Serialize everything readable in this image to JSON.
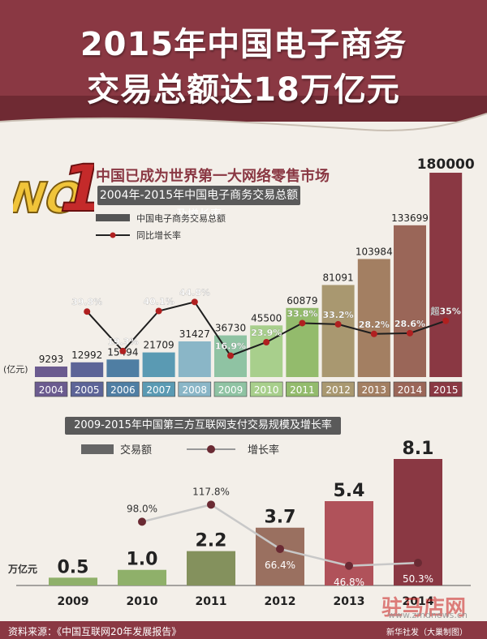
{
  "header": {
    "title_line1": "2015年中国电子商务",
    "title_line2": "交易总额达18万亿元"
  },
  "badge": {
    "text": "NO1"
  },
  "headline": "中国已成为世界第一大网络零售市场",
  "chart_data": [
    {
      "type": "bar",
      "title": "2004年-2015年中国电子商务交易总额及增长率",
      "ylabel": "(亿元)",
      "legend": [
        "中国电子商务交易总额",
        "同比增长率"
      ],
      "categories": [
        "2004",
        "2005",
        "2006",
        "2007",
        "2008",
        "2009",
        "2010",
        "2011",
        "2012",
        "2013",
        "2014",
        "2015"
      ],
      "values": [
        9293,
        12992,
        15494,
        21709,
        31427,
        36730,
        45500,
        60879,
        81091,
        103984,
        133699,
        180000
      ],
      "value_labels": [
        "9293",
        "12992",
        "15494",
        "21709",
        "31427",
        "36730",
        "45500",
        "60879",
        "81091",
        "103984",
        "133699",
        "180000"
      ],
      "growth": [
        null,
        39.8,
        19.3,
        40.1,
        44.8,
        16.9,
        23.9,
        33.8,
        33.2,
        28.2,
        28.6,
        35
      ],
      "growth_labels": [
        "",
        "39.8%",
        "19.3%",
        "40.1%",
        "44.8%",
        "16.9%",
        "23.9%",
        "33.8%",
        "33.2%",
        "28.2%",
        "28.6%",
        "超35%"
      ],
      "bar_colors": [
        "#6b5b8f",
        "#5d6497",
        "#4f7ea3",
        "#5a9ab3",
        "#8ab6c7",
        "#8fc3a3",
        "#a8cf8c",
        "#93bb6c",
        "#a99870",
        "#a37f62",
        "#9a6658",
        "#8a3843"
      ]
    },
    {
      "type": "bar",
      "title": "2009-2015年中国第三方互联网支付交易规模及增长率",
      "ylabel": "万亿元",
      "legend": [
        "交易额",
        "增长率"
      ],
      "categories": [
        "2009",
        "2010",
        "2011",
        "2012",
        "2013",
        "2014"
      ],
      "values": [
        0.5,
        1.0,
        2.2,
        3.7,
        5.4,
        8.1
      ],
      "value_labels": [
        "0.5",
        "1.0",
        "2.2",
        "3.7",
        "5.4",
        "8.1"
      ],
      "growth": [
        null,
        98.0,
        117.8,
        66.4,
        46.8,
        50.3
      ],
      "growth_labels": [
        "",
        "98.0%",
        "117.8%",
        "66.4%",
        "46.8%",
        "50.3%"
      ],
      "bar_colors": [
        "#8fb06a",
        "#8fb06a",
        "#84915d",
        "#9a7060",
        "#b0525a",
        "#8a3843"
      ]
    }
  ],
  "footer": {
    "source": "资料来源：《中国互联网20年发展报告》",
    "credit": "新华社发（大巢制图）"
  },
  "watermark": {
    "text": "驻马店网",
    "url": "www.zmdnews.cn"
  }
}
